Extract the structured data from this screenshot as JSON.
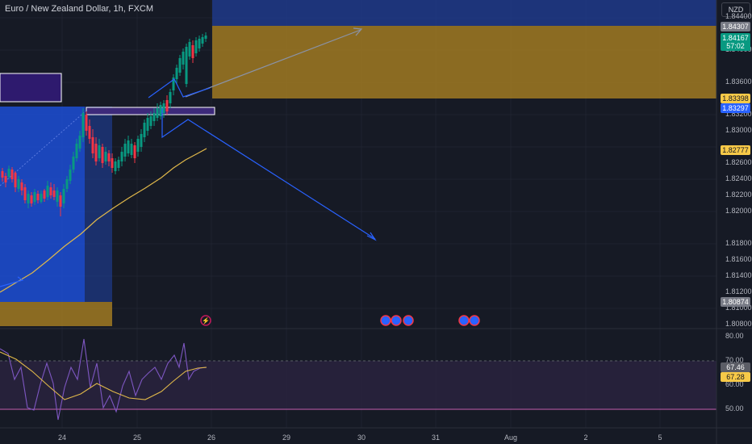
{
  "header": {
    "title": "Euro / New Zealand Dollar, 1h, FXCM",
    "currency": "NZD"
  },
  "price_axis": {
    "ticks": [
      "1.84400",
      "1.84000",
      "1.83600",
      "1.83200",
      "1.83000",
      "1.82600",
      "1.82400",
      "1.82200",
      "1.82000",
      "1.81800",
      "1.81600",
      "1.81400",
      "1.81200",
      "1.81000",
      "1.80800",
      "1.80600"
    ],
    "labels": [
      {
        "text": "1.84307",
        "bg": "#787b86",
        "fg": "#ffffff"
      },
      {
        "text": "1.84167",
        "bg": "#089981",
        "fg": "#ffffff"
      },
      {
        "text": "57:02",
        "bg": "#089981",
        "fg": "#ffffff"
      },
      {
        "text": "1.83398",
        "bg": "#f7c948",
        "fg": "#131722"
      },
      {
        "text": "1.83297",
        "bg": "#2962ff",
        "fg": "#ffffff"
      },
      {
        "text": "1.82777",
        "bg": "#f7c948",
        "fg": "#131722"
      },
      {
        "text": "1.80874",
        "bg": "#787b86",
        "fg": "#ffffff"
      }
    ]
  },
  "rsi_axis": {
    "ticks": [
      "80.00",
      "70.00",
      "60.00",
      "50.00"
    ],
    "labels": [
      {
        "text": "67.46",
        "bg": "#5b5d66",
        "fg": "#ffffff"
      },
      {
        "text": "67.28",
        "bg": "#f7c948",
        "fg": "#131722"
      }
    ]
  },
  "time_axis": {
    "ticks": [
      "24",
      "25",
      "26",
      "29",
      "30",
      "31",
      "Aug",
      "2",
      "5"
    ]
  },
  "colors": {
    "up": "#089981",
    "down": "#f23645",
    "supply_zone": "#a07a22",
    "demand_zone": "#1e53e5",
    "accent_blue": "#2962ff",
    "ma": "#e0b84a",
    "rsi": "#7e57c2"
  },
  "events": {
    "icons": [
      "lightning-icon",
      "calendar-icon",
      "calendar-icon",
      "calendar-icon",
      "calendar-icon",
      "calendar-icon"
    ]
  }
}
